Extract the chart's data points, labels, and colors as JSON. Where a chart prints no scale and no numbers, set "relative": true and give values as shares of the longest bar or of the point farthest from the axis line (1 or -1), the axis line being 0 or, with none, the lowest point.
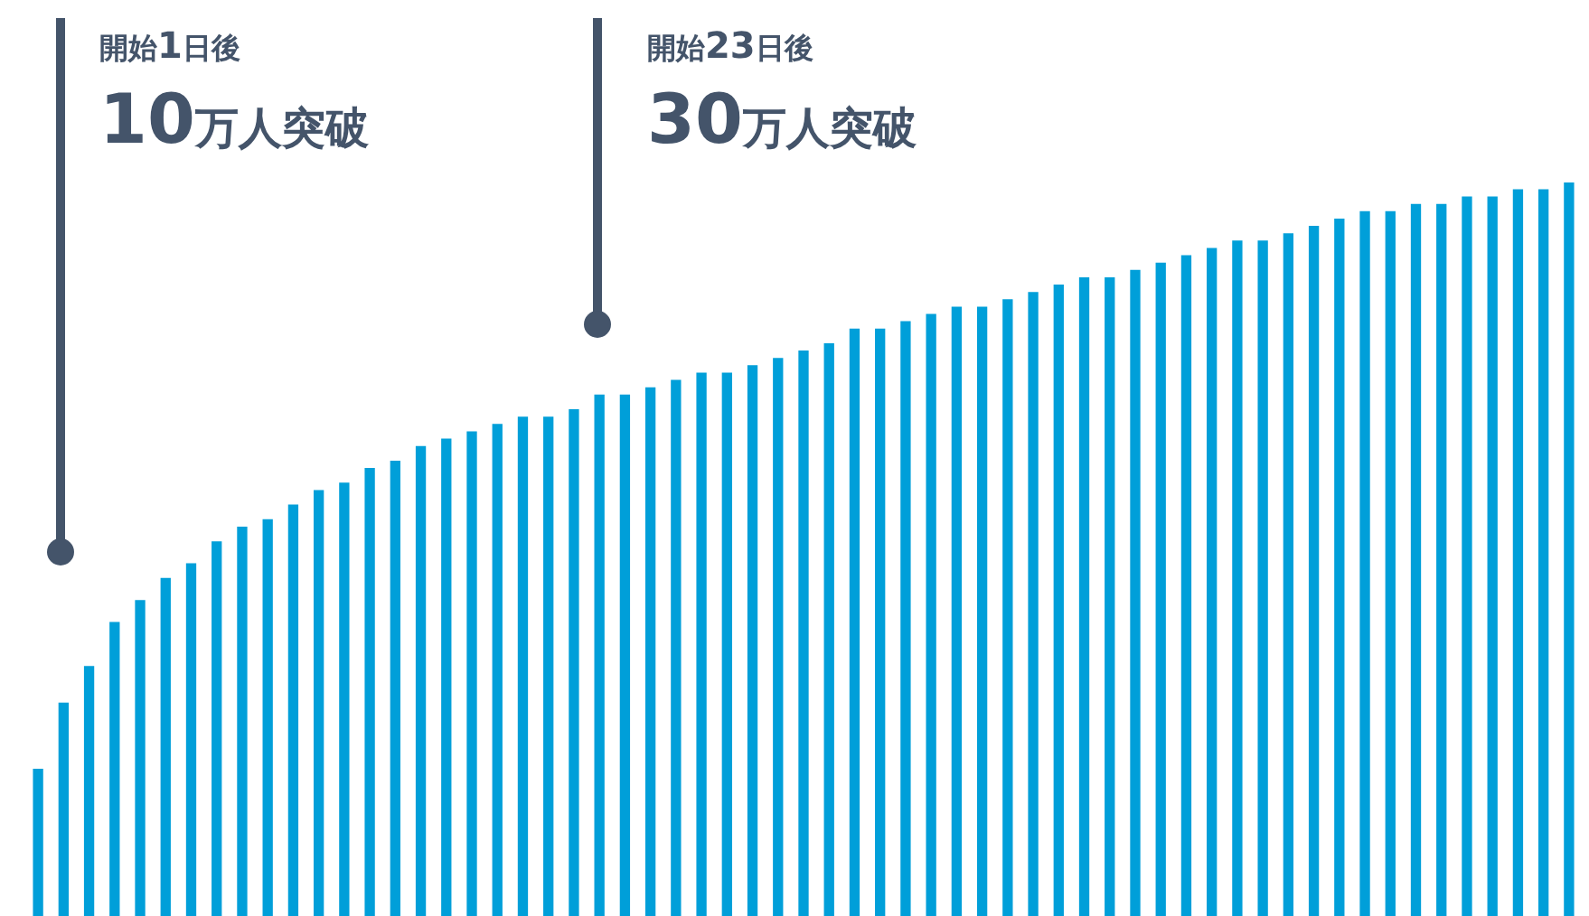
{
  "chart_data": {
    "type": "bar",
    "relative": true,
    "color": "#009fd9",
    "categories": [
      null,
      null,
      null,
      null,
      null,
      null,
      null,
      null,
      null,
      null,
      null,
      null,
      null,
      null,
      null,
      null,
      null,
      null,
      null,
      null,
      null,
      null,
      null,
      null,
      null,
      null,
      null,
      null,
      null,
      null,
      null,
      null,
      null,
      null,
      null,
      null,
      null,
      null,
      null,
      null,
      null,
      null,
      null,
      null,
      null,
      null,
      null,
      null,
      null,
      null,
      null,
      null,
      null,
      null,
      null,
      null,
      null,
      null,
      null,
      null,
      null
    ],
    "values": [
      0.2,
      0.29,
      0.34,
      0.4,
      0.43,
      0.46,
      0.48,
      0.51,
      0.53,
      0.54,
      0.56,
      0.58,
      0.59,
      0.61,
      0.62,
      0.64,
      0.65,
      0.66,
      0.67,
      0.68,
      0.68,
      0.69,
      0.71,
      0.71,
      0.72,
      0.73,
      0.74,
      0.74,
      0.75,
      0.76,
      0.77,
      0.78,
      0.8,
      0.8,
      0.81,
      0.82,
      0.83,
      0.83,
      0.84,
      0.85,
      0.86,
      0.87,
      0.87,
      0.88,
      0.89,
      0.9,
      0.91,
      0.92,
      0.92,
      0.93,
      0.94,
      0.95,
      0.96,
      0.96,
      0.97,
      0.97,
      0.98,
      0.98,
      0.99,
      0.99,
      1
    ],
    "annotations": [
      "開始1日後\n10万人突破",
      "開始23日後\n30万人突破"
    ],
    "legend": false,
    "grid": false
  }
}
